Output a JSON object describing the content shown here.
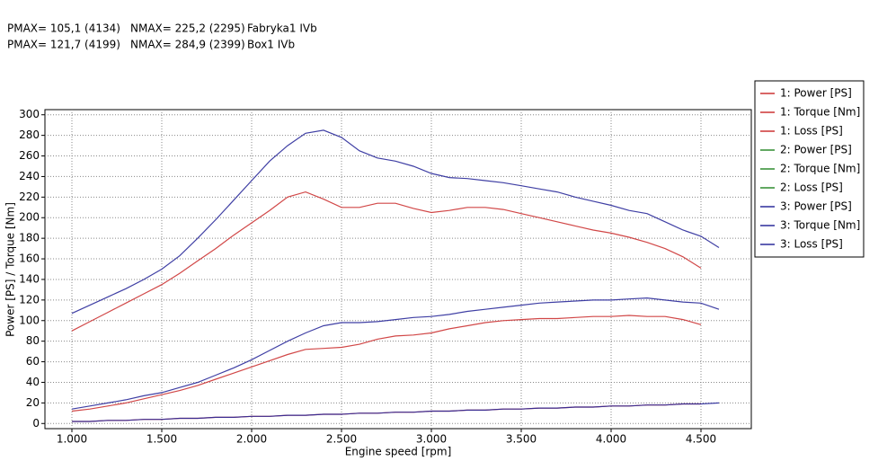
{
  "chart_data": {
    "type": "line",
    "header": [
      [
        "PMAX= 105,1 (4134)",
        "NMAX= 225,2 (2295)",
        "Fabryka1 IVb"
      ],
      [
        "PMAX= 121,7 (4199)",
        "NMAX= 284,9 (2399)",
        "Box1 IVb"
      ]
    ],
    "x_label": "Engine speed [rpm]",
    "y_label": "Power [PS] / Torque [Nm]",
    "x": [
      1000,
      1100,
      1200,
      1300,
      1400,
      1500,
      1600,
      1700,
      1800,
      1900,
      2000,
      2100,
      2200,
      2300,
      2400,
      2500,
      2600,
      2700,
      2800,
      2900,
      3000,
      3100,
      3200,
      3300,
      3400,
      3500,
      3600,
      3700,
      3800,
      3900,
      4000,
      4100,
      4200,
      4300,
      4400,
      4500,
      4600
    ],
    "xlim": [
      850,
      4780
    ],
    "xticks": [
      {
        "value": 1000,
        "label": "1.000"
      },
      {
        "value": 1500,
        "label": "1.500"
      },
      {
        "value": 2000,
        "label": "2.000"
      },
      {
        "value": 2500,
        "label": "2.500"
      },
      {
        "value": 3000,
        "label": "3.000"
      },
      {
        "value": 3500,
        "label": "3.500"
      },
      {
        "value": 4000,
        "label": "4.000"
      },
      {
        "value": 4500,
        "label": "4.500"
      }
    ],
    "ylim": [
      -5,
      305
    ],
    "yticks": [
      0,
      20,
      40,
      60,
      80,
      100,
      120,
      140,
      160,
      180,
      200,
      220,
      240,
      260,
      280,
      300
    ],
    "grid": true,
    "legend": "right",
    "series": [
      {
        "name": "1: Power [PS]",
        "color": "#cc3333",
        "values": [
          12,
          14,
          17,
          20,
          24,
          28,
          32,
          37,
          43,
          49,
          55,
          61,
          67,
          72,
          73,
          74,
          77,
          82,
          85,
          86,
          88,
          92,
          95,
          98,
          100,
          101,
          102,
          102,
          103,
          104,
          104,
          105,
          104,
          104,
          101,
          96,
          null
        ]
      },
      {
        "name": "1: Torque [Nm]",
        "color": "#cc3333",
        "values": [
          90,
          99,
          108,
          117,
          126,
          135,
          146,
          158,
          170,
          183,
          195,
          207,
          220,
          225,
          218,
          210,
          210,
          214,
          214,
          209,
          205,
          207,
          210,
          210,
          208,
          204,
          200,
          196,
          192,
          188,
          185,
          181,
          176,
          170,
          162,
          151,
          null
        ]
      },
      {
        "name": "1: Loss [PS]",
        "color": "#cc3333",
        "values": [
          2,
          2,
          3,
          3,
          4,
          4,
          5,
          5,
          6,
          6,
          7,
          7,
          8,
          8,
          9,
          9,
          10,
          10,
          11,
          11,
          12,
          12,
          13,
          13,
          14,
          14,
          15,
          15,
          16,
          16,
          17,
          17,
          18,
          18,
          19,
          19,
          null
        ]
      },
      {
        "name": "2: Power [PS]",
        "color": "#2e8b2e",
        "values": [
          null,
          null,
          null,
          null,
          null,
          null,
          null,
          null,
          null,
          null,
          null,
          null,
          null,
          null,
          null,
          null,
          null,
          null,
          null,
          null,
          null,
          null,
          null,
          null,
          null,
          null,
          null,
          null,
          null,
          null,
          null,
          null,
          null,
          null,
          null,
          null,
          null
        ]
      },
      {
        "name": "2: Torque [Nm]",
        "color": "#2e8b2e",
        "values": [
          null,
          null,
          null,
          null,
          null,
          null,
          null,
          null,
          null,
          null,
          null,
          null,
          null,
          null,
          null,
          null,
          null,
          null,
          null,
          null,
          null,
          null,
          null,
          null,
          null,
          null,
          null,
          null,
          null,
          null,
          null,
          null,
          null,
          null,
          null,
          null,
          null
        ]
      },
      {
        "name": "2: Loss [PS]",
        "color": "#2e8b2e",
        "values": [
          null,
          null,
          null,
          null,
          null,
          null,
          null,
          null,
          null,
          null,
          null,
          null,
          null,
          null,
          null,
          null,
          null,
          null,
          null,
          null,
          null,
          null,
          null,
          null,
          null,
          null,
          null,
          null,
          null,
          null,
          null,
          null,
          null,
          null,
          null,
          null,
          null
        ]
      },
      {
        "name": "3: Power [PS]",
        "color": "#2a2a9a",
        "values": [
          14,
          17,
          20,
          23,
          27,
          30,
          35,
          40,
          47,
          54,
          62,
          71,
          80,
          88,
          95,
          98,
          98,
          99,
          101,
          103,
          104,
          106,
          109,
          111,
          113,
          115,
          117,
          118,
          119,
          120,
          120,
          121,
          122,
          120,
          118,
          117,
          111
        ]
      },
      {
        "name": "3: Torque [Nm]",
        "color": "#2a2a9a",
        "values": [
          107,
          115,
          123,
          131,
          140,
          150,
          163,
          180,
          198,
          217,
          236,
          255,
          270,
          282,
          285,
          278,
          265,
          258,
          255,
          250,
          243,
          239,
          238,
          236,
          234,
          231,
          228,
          225,
          220,
          216,
          212,
          207,
          204,
          196,
          188,
          182,
          171
        ]
      },
      {
        "name": "3: Loss [PS]",
        "color": "#2a2a9a",
        "values": [
          2,
          2,
          3,
          3,
          4,
          4,
          5,
          5,
          6,
          6,
          7,
          7,
          8,
          8,
          9,
          9,
          10,
          10,
          11,
          11,
          12,
          12,
          13,
          13,
          14,
          14,
          15,
          15,
          16,
          16,
          17,
          17,
          18,
          18,
          19,
          19,
          20
        ]
      }
    ]
  }
}
